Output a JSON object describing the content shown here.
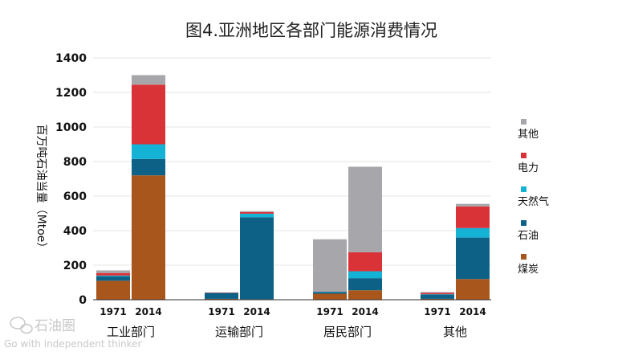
{
  "chart_data": {
    "type": "bar",
    "stacked": true,
    "title": "图4.亚洲地区各部门能源消费情况",
    "ylabel": "百万吨石油当量（Mtoe）",
    "ylim": [
      0,
      1400
    ],
    "yticks": [
      0,
      200,
      400,
      600,
      800,
      1000,
      1200,
      1400
    ],
    "grid": true,
    "legend_position": "right",
    "groups": [
      {
        "name": "工业部门",
        "years": [
          "1971",
          "2014"
        ]
      },
      {
        "name": "运输部门",
        "years": [
          "1971",
          "2014"
        ]
      },
      {
        "name": "居民部门",
        "years": [
          "1971",
          "2014"
        ]
      },
      {
        "name": "其他",
        "years": [
          "1971",
          "2014"
        ]
      }
    ],
    "categories": [
      "工业部门 1971",
      "工业部门 2014",
      "运输部门 1971",
      "运输部门 2014",
      "居民部门 1971",
      "居民部门 2014",
      "其他 1971",
      "其他 2014"
    ],
    "series": [
      {
        "name": "煤炭",
        "color": "#a8561c",
        "values": [
          110,
          720,
          5,
          3,
          35,
          55,
          5,
          120
        ]
      },
      {
        "name": "石油",
        "color": "#0d6187",
        "values": [
          25,
          95,
          35,
          475,
          10,
          70,
          25,
          240
        ]
      },
      {
        "name": "天然气",
        "color": "#14b2d4",
        "values": [
          5,
          85,
          0,
          20,
          3,
          40,
          2,
          55
        ]
      },
      {
        "name": "电力",
        "color": "#d93338",
        "values": [
          15,
          345,
          2,
          10,
          2,
          110,
          8,
          125
        ]
      },
      {
        "name": "其他",
        "color": "#a7a7ab",
        "values": [
          15,
          55,
          0,
          5,
          300,
          495,
          5,
          15
        ]
      }
    ],
    "legend_order": [
      "其他",
      "电力",
      "天然气",
      "石油",
      "煤炭"
    ]
  },
  "watermark": {
    "brand": "石油圈",
    "slogan": "Go with independent thinker"
  }
}
